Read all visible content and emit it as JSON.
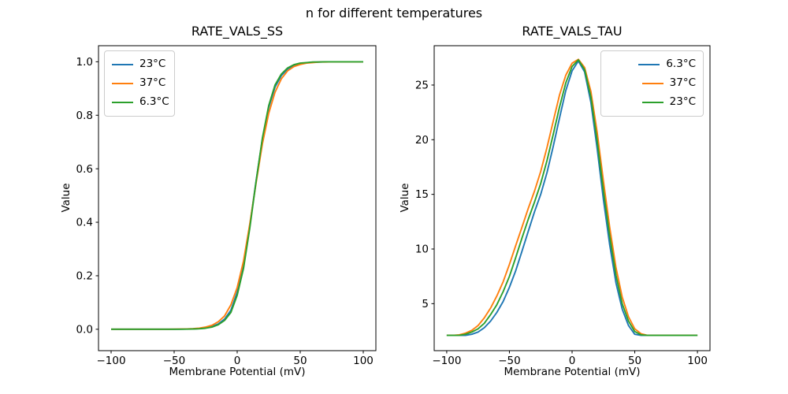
{
  "suptitle": "n for different temperatures",
  "colors": {
    "blue": "#1f77b4",
    "orange": "#ff7f0e",
    "green": "#2ca02c",
    "axis": "#000000",
    "legend_border": "#cccccc"
  },
  "chart_data": [
    {
      "type": "line",
      "title": "RATE_VALS_SS",
      "xlabel": "Membrane Potential (mV)",
      "ylabel": "Value",
      "xlim": [
        -110,
        110
      ],
      "ylim": [
        -0.08,
        1.06
      ],
      "xticks": [
        -100,
        -50,
        0,
        50,
        100
      ],
      "xtick_labels": [
        "−100",
        "−50",
        "0",
        "50",
        "100"
      ],
      "yticks": [
        0.0,
        0.2,
        0.4,
        0.6,
        0.8,
        1.0
      ],
      "ytick_labels": [
        "0.0",
        "0.2",
        "0.4",
        "0.6",
        "0.8",
        "1.0"
      ],
      "grid": false,
      "legend_loc": "upper left",
      "x": [
        -100,
        -95,
        -90,
        -85,
        -80,
        -75,
        -70,
        -65,
        -60,
        -55,
        -50,
        -45,
        -40,
        -35,
        -30,
        -25,
        -20,
        -15,
        -10,
        -5,
        0,
        5,
        10,
        15,
        20,
        25,
        30,
        35,
        40,
        45,
        50,
        55,
        60,
        65,
        70,
        75,
        80,
        85,
        90,
        95,
        100
      ],
      "series": [
        {
          "name": "23°C",
          "color": "#1f77b4",
          "values": [
            0,
            0,
            0,
            0,
            0,
            0,
            0,
            0,
            0,
            0,
            0.0002,
            0.0003,
            0.0007,
            0.0013,
            0.0025,
            0.005,
            0.01,
            0.02,
            0.038,
            0.071,
            0.138,
            0.24,
            0.388,
            0.555,
            0.711,
            0.829,
            0.905,
            0.948,
            0.973,
            0.986,
            0.993,
            0.996,
            0.998,
            0.999,
            1,
            1,
            1,
            1,
            1,
            1,
            1
          ]
        },
        {
          "name": "37°C",
          "color": "#ff7f0e",
          "values": [
            0,
            0,
            0,
            0,
            0,
            0,
            0,
            0,
            0.0001,
            0.0002,
            0.0004,
            0.0007,
            0.0012,
            0.0023,
            0.0043,
            0.008,
            0.015,
            0.028,
            0.05,
            0.091,
            0.156,
            0.255,
            0.394,
            0.547,
            0.693,
            0.807,
            0.886,
            0.936,
            0.966,
            0.982,
            0.99,
            0.995,
            0.997,
            0.999,
            0.999,
            1,
            1,
            1,
            1,
            1,
            1
          ]
        },
        {
          "name": "6.3°C",
          "color": "#2ca02c",
          "values": [
            0,
            0,
            0,
            0,
            0,
            0,
            0,
            0,
            0,
            0,
            0.0001,
            0.0002,
            0.0005,
            0.001,
            0.002,
            0.004,
            0.008,
            0.017,
            0.033,
            0.063,
            0.127,
            0.227,
            0.378,
            0.553,
            0.715,
            0.836,
            0.913,
            0.954,
            0.977,
            0.989,
            0.995,
            0.997,
            0.999,
            0.999,
            1,
            1,
            1,
            1,
            1,
            1,
            1
          ]
        }
      ]
    },
    {
      "type": "line",
      "title": "RATE_VALS_TAU",
      "xlabel": "Membrane Potential (mV)",
      "ylabel": "Value",
      "xlim": [
        -110,
        110
      ],
      "ylim": [
        0.7,
        28.6
      ],
      "xticks": [
        -100,
        -50,
        0,
        50,
        100
      ],
      "xtick_labels": [
        "−100",
        "−50",
        "0",
        "50",
        "100"
      ],
      "yticks": [
        5,
        10,
        15,
        20,
        25
      ],
      "ytick_labels": [
        "5",
        "10",
        "15",
        "20",
        "25"
      ],
      "grid": false,
      "legend_loc": "upper right",
      "x": [
        -100,
        -95,
        -90,
        -85,
        -80,
        -75,
        -70,
        -65,
        -60,
        -55,
        -50,
        -45,
        -40,
        -35,
        -30,
        -25,
        -20,
        -15,
        -10,
        -5,
        0,
        5,
        10,
        15,
        20,
        25,
        30,
        35,
        40,
        45,
        50,
        55,
        60,
        65,
        70,
        75,
        80,
        85,
        90,
        95,
        100
      ],
      "series": [
        {
          "name": "6.3°C",
          "color": "#1f77b4",
          "values": [
            2.1,
            2.1,
            2.1,
            2.1,
            2.2,
            2.4,
            2.8,
            3.4,
            4.2,
            5.2,
            6.5,
            8,
            9.8,
            11.6,
            13.4,
            15,
            17,
            19.4,
            22,
            24.5,
            26.3,
            27.2,
            26.2,
            23.4,
            19.2,
            14.5,
            10.4,
            6.9,
            4.5,
            3,
            2.2,
            2.1,
            2.1,
            2.1,
            2.1,
            2.1,
            2.1,
            2.1,
            2.1,
            2.1,
            2.1
          ]
        },
        {
          "name": "37°C",
          "color": "#ff7f0e",
          "values": [
            2.1,
            2.1,
            2.15,
            2.3,
            2.55,
            3,
            3.7,
            4.6,
            5.7,
            7,
            8.6,
            10.3,
            12,
            13.7,
            15.3,
            17.1,
            19.3,
            21.7,
            24.1,
            25.9,
            27,
            27.35,
            26.6,
            24.4,
            20.7,
            16.2,
            12,
            8.3,
            5.6,
            3.8,
            2.7,
            2.25,
            2.1,
            2.1,
            2.1,
            2.1,
            2.1,
            2.1,
            2.1,
            2.1,
            2.1
          ]
        },
        {
          "name": "23°C",
          "color": "#2ca02c",
          "values": [
            2.1,
            2.1,
            2.1,
            2.2,
            2.4,
            2.7,
            3.2,
            4,
            4.9,
            6.1,
            7.5,
            9.2,
            11,
            12.7,
            14.3,
            16,
            18.1,
            20.5,
            23,
            25.2,
            26.7,
            27.3,
            26.4,
            23.9,
            19.9,
            15.3,
            11.2,
            7.6,
            5,
            3.4,
            2.45,
            2.15,
            2.1,
            2.1,
            2.1,
            2.1,
            2.1,
            2.1,
            2.1,
            2.1,
            2.1
          ]
        }
      ]
    }
  ]
}
